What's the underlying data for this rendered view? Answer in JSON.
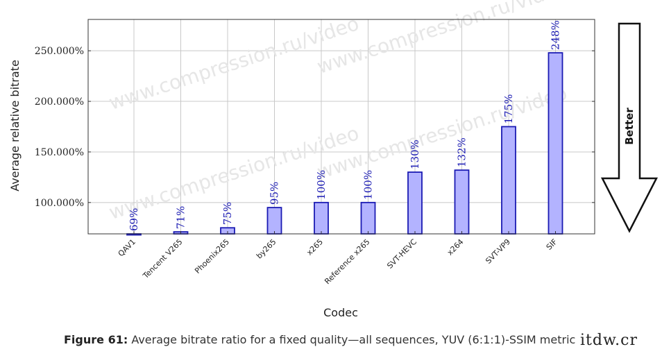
{
  "chart_data": {
    "type": "bar",
    "xlabel": "Codec",
    "ylabel": "Average relative bitrate",
    "categories": [
      "QAV1",
      "Tencent V265",
      "Phoenix265",
      "by265",
      "x265",
      "Reference x265",
      "SVT-HEVC",
      "x264",
      "SVT-VP9",
      "SIF"
    ],
    "values": [
      69,
      71,
      75,
      95,
      100,
      100,
      130,
      132,
      175,
      248
    ],
    "data_labels": [
      "69%",
      "71%",
      "75%",
      "95%",
      "100%",
      "100%",
      "130%",
      "132%",
      "175%",
      "248%"
    ],
    "yticks": [
      100,
      150,
      200,
      250
    ],
    "ytick_labels": [
      "100.000%",
      "150.000%",
      "200.000%",
      "250.000%"
    ],
    "ylim": [
      69,
      281
    ],
    "grid": true,
    "bar_fill": "#b3b3ff",
    "bar_stroke": "#1a1ab3",
    "label_color": "#1a1ab3"
  },
  "annotation": {
    "arrow_label": "Better"
  },
  "watermark": "www.compression.ru/video",
  "caption": {
    "prefix": "Figure 61:",
    "text": " Average bitrate ratio for a fixed quality—all sequences, YUV (6:1:1)-SSIM metric"
  },
  "badge": "itdw.cr"
}
